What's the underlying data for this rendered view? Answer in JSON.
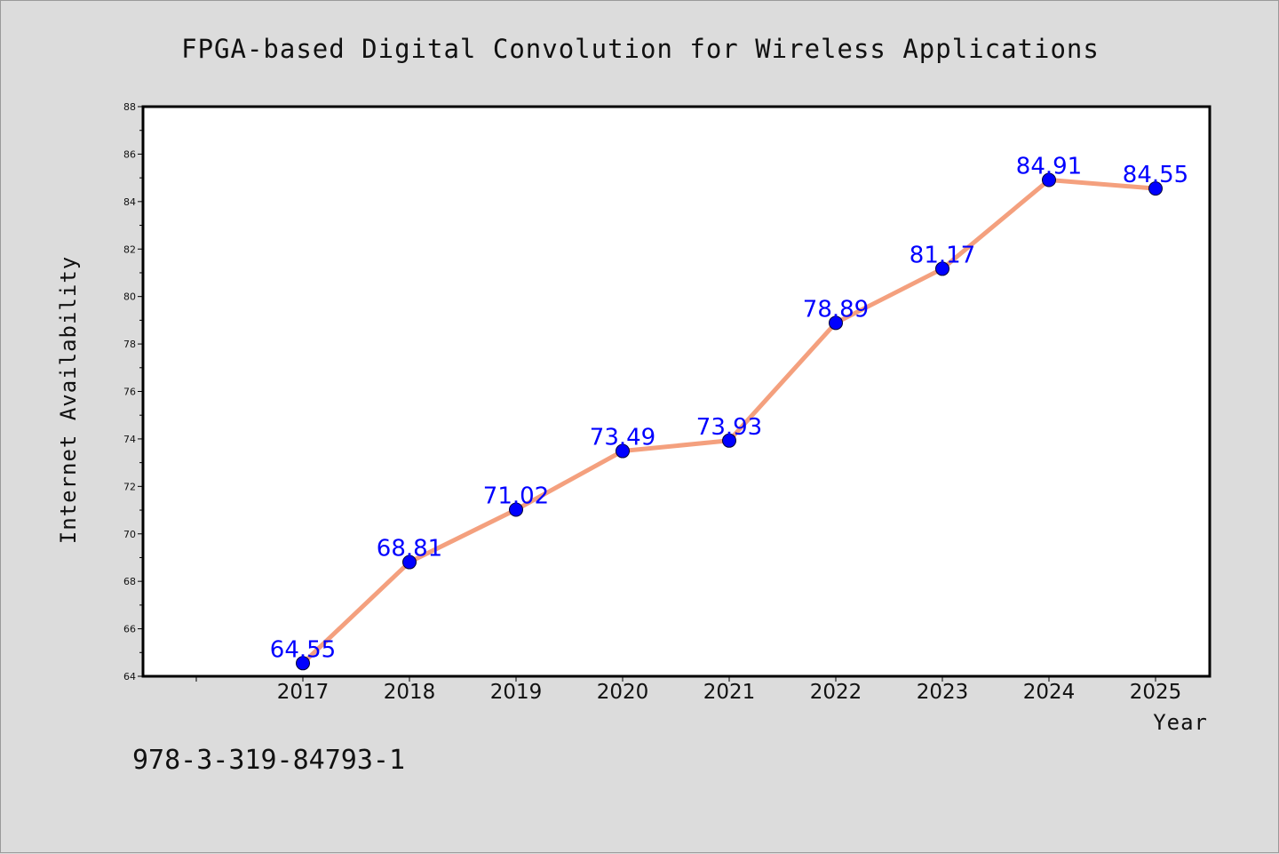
{
  "chart_data": {
    "type": "line",
    "title": "FPGA-based Digital Convolution for Wireless Applications",
    "xlabel": "Year",
    "ylabel": "Internet Availability",
    "categories": [
      "2017",
      "2018",
      "2019",
      "2020",
      "2021",
      "2022",
      "2023",
      "2024",
      "2025"
    ],
    "series": [
      {
        "values": [
          64.55,
          68.81,
          71.02,
          73.49,
          73.93,
          78.89,
          81.17,
          84.91,
          84.55
        ],
        "data_labels": [
          "64.55",
          "68.81",
          "71.02",
          "73.49",
          "73.93",
          "78.89",
          "81.17",
          "84.91",
          "84.55"
        ],
        "line_color": "#f4a07e",
        "marker_color": "#0000ff"
      }
    ],
    "ylim": [
      64,
      88
    ],
    "yticks": [
      "64",
      "66",
      "68",
      "70",
      "72",
      "74",
      "76",
      "78",
      "80",
      "82",
      "84",
      "86",
      "88"
    ],
    "grid": false,
    "legend": "none"
  },
  "footer": {
    "text": "978-3-319-84793-1"
  },
  "colors": {
    "page_background": "#dcdcdc",
    "plot_background": "#ffffff",
    "axis_frame": "#000000",
    "data_label": "#0000ff"
  }
}
